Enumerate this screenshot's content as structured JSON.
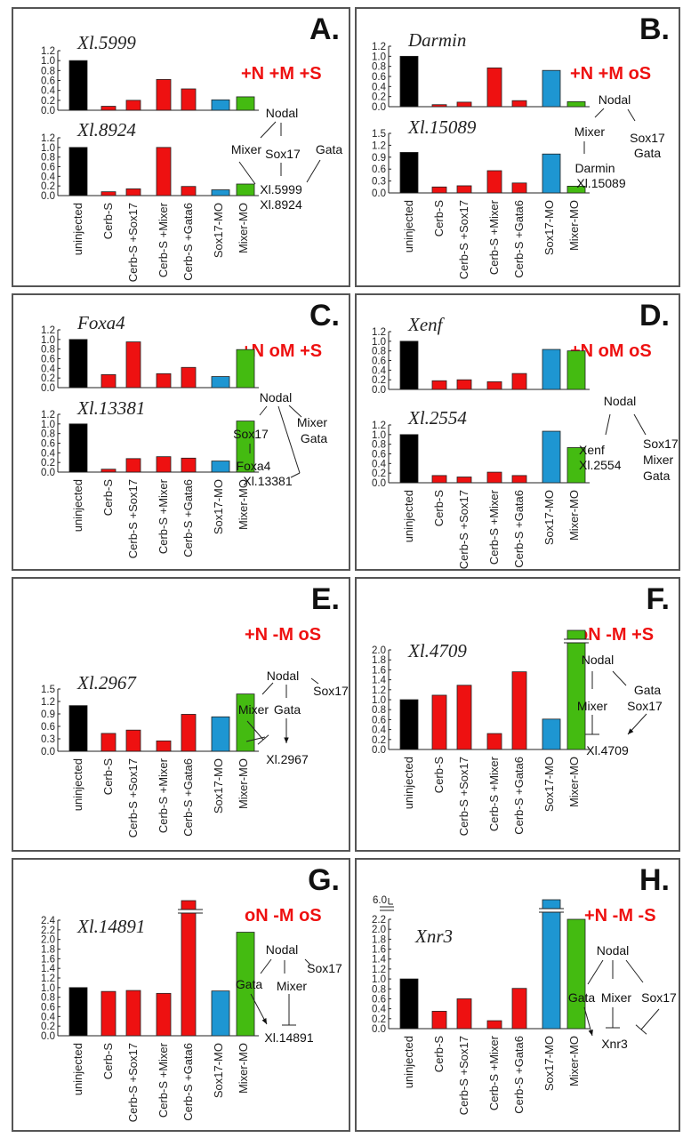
{
  "colors": {
    "uninjected": "#000000",
    "cerb": "#ee1111",
    "sox17mo": "#1e96d2",
    "mixermo": "#44bb11",
    "code": "#ee1111"
  },
  "categories": [
    "uninjected",
    "Cerb-S",
    "Cerb-S +Sox17",
    "Cerb-S +Mixer",
    "Cerb-S +Gata6",
    "Sox17-MO",
    "Mixer-MO"
  ],
  "panels": [
    {
      "letter": "A.",
      "code": "+N +M +S",
      "diagram": {
        "nodes": [
          "Nodal",
          "Mixer",
          "Sox17",
          "Gata",
          "Xl.5999",
          "Xl.8924"
        ]
      }
    },
    {
      "letter": "B.",
      "code": "+N +M oS",
      "diagram": {
        "nodes": [
          "Nodal",
          "Mixer",
          "Sox17",
          "Gata",
          "Darmin",
          "Xl.15089"
        ]
      }
    },
    {
      "letter": "C.",
      "code": "+N oM +S",
      "diagram": {
        "nodes": [
          "Nodal",
          "Sox17",
          "Mixer",
          "Gata",
          "Foxa4",
          "Xl.13381"
        ]
      }
    },
    {
      "letter": "D.",
      "code": "+N oM oS",
      "diagram": {
        "nodes": [
          "Nodal",
          "Xenf",
          "Xl.2554",
          "Sox17",
          "Mixer",
          "Gata"
        ]
      }
    },
    {
      "letter": "E.",
      "code": "+N -M oS",
      "diagram": {
        "nodes": [
          "Nodal",
          "Mixer",
          "Gata",
          "Sox17",
          "Xl.2967"
        ]
      }
    },
    {
      "letter": "F.",
      "code": "oN -M +S",
      "diagram": {
        "nodes": [
          "Nodal",
          "Mixer",
          "Gata",
          "Sox17",
          "Xl.4709"
        ]
      }
    },
    {
      "letter": "G.",
      "code": "oN -M oS",
      "diagram": {
        "nodes": [
          "Nodal",
          "Gata",
          "Mixer",
          "Sox17",
          "Xl.14891"
        ]
      }
    },
    {
      "letter": "H.",
      "code": "+N -M -S",
      "diagram": {
        "nodes": [
          "Nodal",
          "Gata",
          "Mixer",
          "Sox17",
          "Xnr3"
        ]
      }
    }
  ],
  "chart_data": [
    {
      "type": "bar",
      "panel": "A",
      "title": "Xl.5999",
      "ylim": [
        0,
        1.2
      ],
      "yticks": [
        "0.0",
        "0.2",
        "0.4",
        "0.6",
        "0.8",
        "1.0",
        "1.2"
      ],
      "categories": [
        "uninjected",
        "Cerb-S",
        "Cerb-S +Sox17",
        "Cerb-S +Mixer",
        "Cerb-S +Gata6",
        "Sox17-MO",
        "Mixer-MO"
      ],
      "values": [
        1.0,
        0.08,
        0.2,
        0.62,
        0.43,
        0.21,
        0.27
      ]
    },
    {
      "type": "bar",
      "panel": "A",
      "title": "Xl.8924",
      "ylim": [
        0,
        1.2
      ],
      "yticks": [
        "0.0",
        "0.2",
        "0.4",
        "0.6",
        "0.8",
        "1.0",
        "1.2"
      ],
      "categories": [
        "uninjected",
        "Cerb-S",
        "Cerb-S +Sox17",
        "Cerb-S +Mixer",
        "Cerb-S +Gata6",
        "Sox17-MO",
        "Mixer-MO"
      ],
      "values": [
        1.0,
        0.08,
        0.14,
        1.0,
        0.19,
        0.12,
        0.24
      ]
    },
    {
      "type": "bar",
      "panel": "B",
      "title": "Darmin",
      "ylim": [
        0,
        1.2
      ],
      "yticks": [
        "0.0",
        "0.2",
        "0.4",
        "0.6",
        "0.8",
        "1.0",
        "1.2"
      ],
      "categories": [
        "uninjected",
        "Cerb-S",
        "Cerb-S +Sox17",
        "Cerb-S +Mixer",
        "Cerb-S +Gata6",
        "Sox17-MO",
        "Mixer-MO"
      ],
      "values": [
        1.0,
        0.04,
        0.09,
        0.77,
        0.12,
        0.72,
        0.1
      ]
    },
    {
      "type": "bar",
      "panel": "B",
      "title": "Xl.15089",
      "ylim": [
        0,
        1.5
      ],
      "yticks": [
        "0.0",
        "0.3",
        "0.6",
        "0.9",
        "1.2",
        "1.5"
      ],
      "categories": [
        "uninjected",
        "Cerb-S",
        "Cerb-S +Sox17",
        "Cerb-S +Mixer",
        "Cerb-S +Gata6",
        "Sox17-MO",
        "Mixer-MO"
      ],
      "values": [
        1.02,
        0.15,
        0.18,
        0.56,
        0.25,
        0.98,
        0.17
      ]
    },
    {
      "type": "bar",
      "panel": "C",
      "title": "Foxa4",
      "ylim": [
        0,
        1.2
      ],
      "yticks": [
        "0.0",
        "0.2",
        "0.4",
        "0.6",
        "0.8",
        "1.0",
        "1.2"
      ],
      "categories": [
        "uninjected",
        "Cerb-S",
        "Cerb-S +Sox17",
        "Cerb-S +Mixer",
        "Cerb-S +Gata6",
        "Sox17-MO",
        "Mixer-MO"
      ],
      "values": [
        1.0,
        0.27,
        0.95,
        0.29,
        0.42,
        0.23,
        0.79
      ]
    },
    {
      "type": "bar",
      "panel": "C",
      "title": "Xl.13381",
      "ylim": [
        0,
        1.2
      ],
      "yticks": [
        "0.0",
        "0.2",
        "0.4",
        "0.6",
        "0.8",
        "1.0",
        "1.2"
      ],
      "categories": [
        "uninjected",
        "Cerb-S",
        "Cerb-S +Sox17",
        "Cerb-S +Mixer",
        "Cerb-S +Gata6",
        "Sox17-MO",
        "Mixer-MO"
      ],
      "values": [
        1.0,
        0.06,
        0.28,
        0.32,
        0.29,
        0.23,
        1.06
      ]
    },
    {
      "type": "bar",
      "panel": "D",
      "title": "Xenf",
      "ylim": [
        0,
        1.2
      ],
      "yticks": [
        "0.0",
        "0.2",
        "0.4",
        "0.6",
        "0.8",
        "1.0",
        "1.2"
      ],
      "categories": [
        "uninjected",
        "Cerb-S",
        "Cerb-S +Sox17",
        "Cerb-S +Mixer",
        "Cerb-S +Gata6",
        "Sox17-MO",
        "Mixer-MO"
      ],
      "values": [
        1.0,
        0.18,
        0.2,
        0.16,
        0.33,
        0.83,
        0.8
      ]
    },
    {
      "type": "bar",
      "panel": "D",
      "title": "Xl.2554",
      "ylim": [
        0,
        1.2
      ],
      "yticks": [
        "0.0",
        "0.2",
        "0.4",
        "0.6",
        "0.8",
        "1.0",
        "1.2"
      ],
      "categories": [
        "uninjected",
        "Cerb-S",
        "Cerb-S +Sox17",
        "Cerb-S +Mixer",
        "Cerb-S +Gata6",
        "Sox17-MO",
        "Mixer-MO"
      ],
      "values": [
        1.0,
        0.15,
        0.12,
        0.22,
        0.15,
        1.07,
        0.73
      ]
    },
    {
      "type": "bar",
      "panel": "E",
      "title": "Xl.2967",
      "ylim": [
        0,
        1.5
      ],
      "yticks": [
        "0.0",
        "0.3",
        "0.6",
        "0.9",
        "1.2",
        "1.5"
      ],
      "categories": [
        "uninjected",
        "Cerb-S",
        "Cerb-S +Sox17",
        "Cerb-S +Mixer",
        "Cerb-S +Gata6",
        "Sox17-MO",
        "Mixer-MO"
      ],
      "values": [
        1.1,
        0.43,
        0.51,
        0.25,
        0.89,
        0.83,
        1.38
      ]
    },
    {
      "type": "bar",
      "panel": "F",
      "title": "Xl.4709",
      "ylim": [
        0,
        2.0
      ],
      "yticks": [
        "0.0",
        "0.2",
        "0.4",
        "0.6",
        "0.8",
        "1.0",
        "1.2",
        "1.4",
        "1.6",
        "1.8",
        "2.0"
      ],
      "categories": [
        "uninjected",
        "Cerb-S",
        "Cerb-S +Sox17",
        "Cerb-S +Mixer",
        "Cerb-S +Gata6",
        "Sox17-MO",
        "Mixer-MO"
      ],
      "values": [
        1.0,
        1.09,
        1.29,
        0.32,
        1.56,
        0.61,
        2.12
      ]
    },
    {
      "type": "bar",
      "panel": "G",
      "title": "Xl.14891",
      "ylim": [
        0,
        2.4
      ],
      "yticks": [
        "0.0",
        "0.2",
        "0.4",
        "0.6",
        "0.8",
        "1.0",
        "1.2",
        "1.4",
        "1.6",
        "1.8",
        "2.0",
        "2.2",
        "2.4"
      ],
      "categories": [
        "uninjected",
        "Cerb-S",
        "Cerb-S +Sox17",
        "Cerb-S +Mixer",
        "Cerb-S +Gata6",
        "Sox17-MO",
        "Mixer-MO"
      ],
      "values": [
        1.0,
        0.92,
        0.94,
        0.88,
        2.41,
        0.93,
        2.15
      ]
    },
    {
      "type": "bar",
      "panel": "H",
      "title": "Xnr3",
      "ylim": [
        0,
        2.2
      ],
      "axis_break": {
        "upper_tick": "6.0"
      },
      "yticks": [
        "0.0",
        "0.2",
        "0.4",
        "0.6",
        "0.8",
        "1.0",
        "1.2",
        "1.4",
        "1.6",
        "1.8",
        "2.0",
        "2.2"
      ],
      "categories": [
        "uninjected",
        "Cerb-S",
        "Cerb-S +Sox17",
        "Cerb-S +Mixer",
        "Cerb-S +Gata6",
        "Sox17-MO",
        "Mixer-MO"
      ],
      "values": [
        1.0,
        0.35,
        0.6,
        0.16,
        0.81,
        6.0,
        2.2
      ]
    }
  ]
}
